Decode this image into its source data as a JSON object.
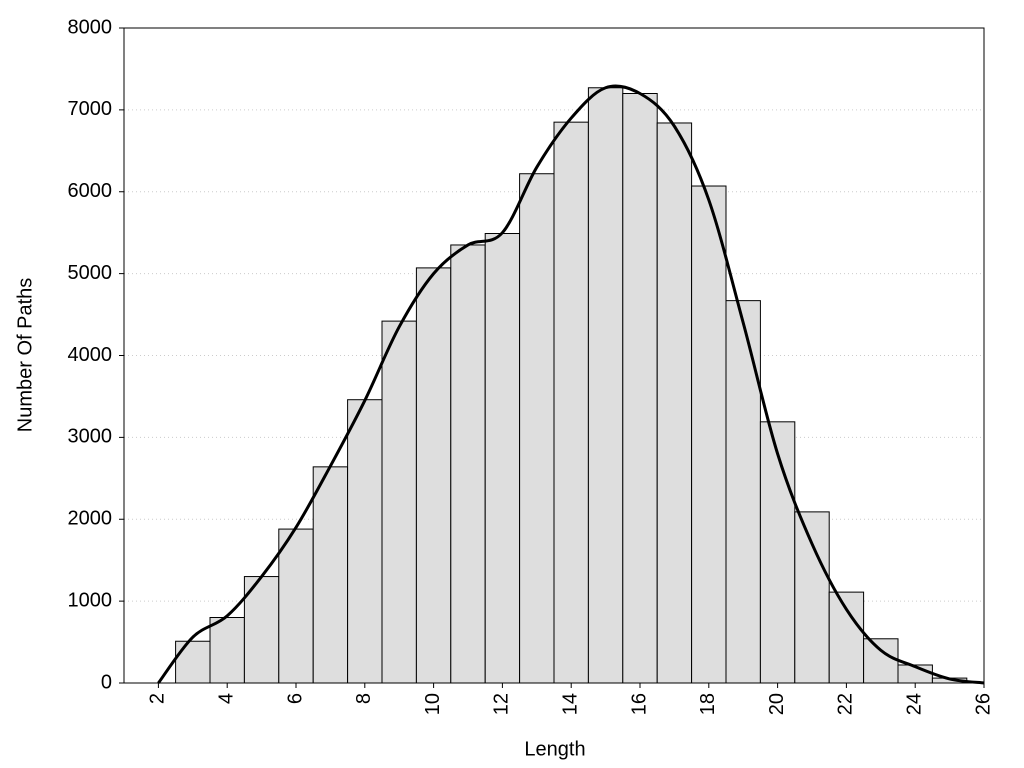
{
  "chart_data": {
    "type": "histogram",
    "xlabel": "Length",
    "ylabel": "Number Of Paths",
    "bins": [
      2.5,
      3.5,
      4.5,
      5.5,
      6.5,
      7.5,
      8.5,
      9.5,
      10.5,
      11.5,
      12.5,
      13.5,
      14.5,
      15.5,
      16.5,
      17.5,
      18.5,
      19.5,
      20.5,
      21.5,
      22.5,
      23.5,
      24.5,
      25.5
    ],
    "values": [
      510,
      800,
      1300,
      1880,
      2640,
      3460,
      4420,
      5070,
      5350,
      5490,
      6220,
      6850,
      7270,
      7200,
      6840,
      6070,
      4670,
      3190,
      2090,
      1110,
      540,
      220,
      60
    ],
    "color": "#dedede",
    "edgecolor": "#000000",
    "curve": {
      "type": "line",
      "color": "#000000",
      "x": [
        2,
        3,
        4,
        5,
        6,
        7,
        8,
        9,
        10,
        11,
        12,
        13,
        14,
        15,
        16,
        17,
        18,
        19,
        20,
        21,
        22,
        23,
        24,
        25,
        26
      ],
      "values": [
        0,
        560,
        820,
        1300,
        1900,
        2650,
        3450,
        4350,
        5000,
        5350,
        5500,
        6300,
        6900,
        7270,
        7200,
        6800,
        5900,
        4400,
        2800,
        1700,
        900,
        400,
        200,
        50,
        0
      ]
    },
    "xlim": [
      1,
      26
    ],
    "ylim": [
      0,
      8000
    ],
    "xticks": [
      2,
      4,
      6,
      8,
      10,
      12,
      14,
      16,
      18,
      20,
      22,
      24,
      26
    ],
    "yticks": [
      0,
      1000,
      2000,
      3000,
      4000,
      5000,
      6000,
      7000,
      8000
    ],
    "grid": true
  }
}
